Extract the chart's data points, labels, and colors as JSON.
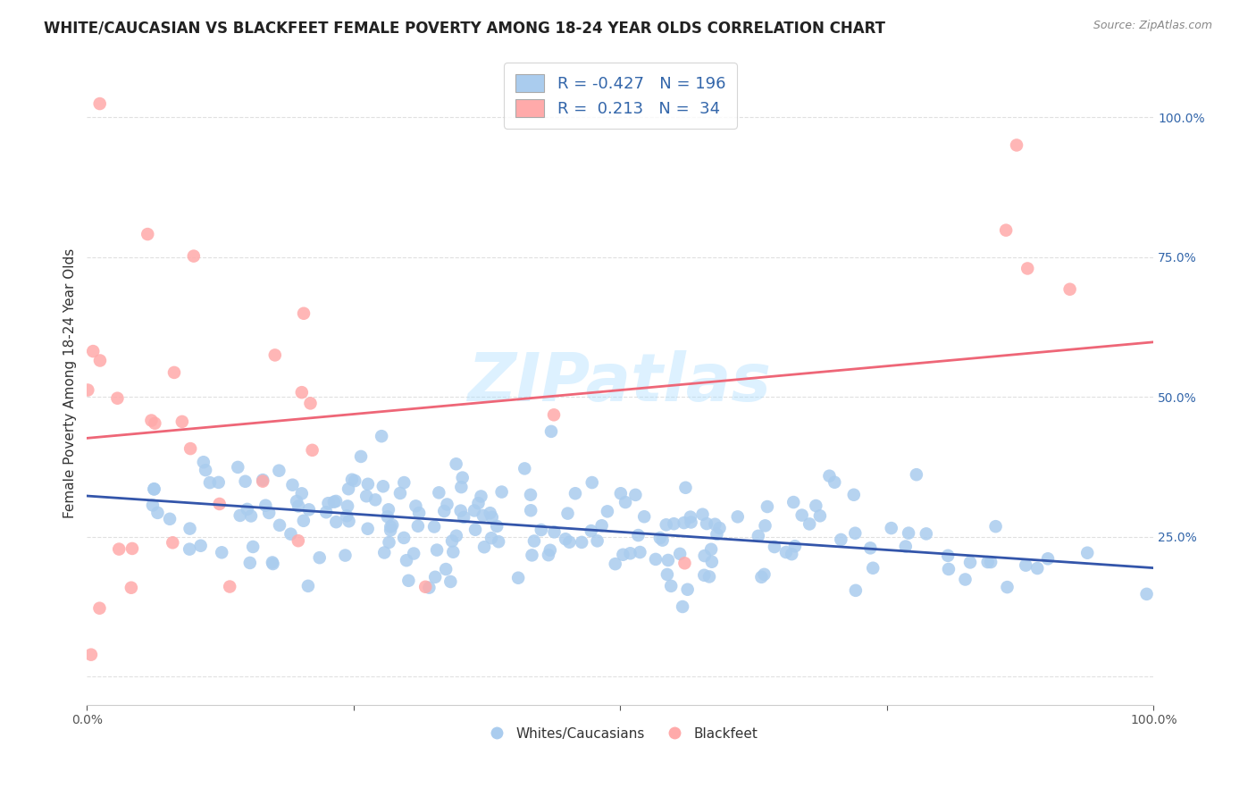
{
  "title": "WHITE/CAUCASIAN VS BLACKFEET FEMALE POVERTY AMONG 18-24 YEAR OLDS CORRELATION CHART",
  "source": "Source: ZipAtlas.com",
  "ylabel": "Female Poverty Among 18-24 Year Olds",
  "xlim": [
    0,
    1
  ],
  "ylim": [
    -0.05,
    1.1
  ],
  "yticks": [
    0.0,
    0.25,
    0.5,
    0.75,
    1.0
  ],
  "ytick_labels": [
    "",
    "25.0%",
    "50.0%",
    "75.0%",
    "100.0%"
  ],
  "xticks": [
    0.0,
    0.25,
    0.5,
    0.75,
    1.0
  ],
  "xtick_labels": [
    "0.0%",
    "",
    "",
    "",
    "100.0%"
  ],
  "blue_R": -0.427,
  "blue_N": 196,
  "pink_R": 0.213,
  "pink_N": 34,
  "blue_color": "#aaccee",
  "pink_color": "#ffaaaa",
  "blue_line_color": "#3355aa",
  "pink_line_color": "#ee6677",
  "legend_label_blue": "Whites/Caucasians",
  "legend_label_pink": "Blackfeet",
  "watermark": "ZIPatlas",
  "background_color": "#ffffff",
  "grid_color": "#dddddd",
  "title_fontsize": 12,
  "axis_label_fontsize": 11,
  "tick_fontsize": 10,
  "blue_seed": 42,
  "pink_seed": 99
}
